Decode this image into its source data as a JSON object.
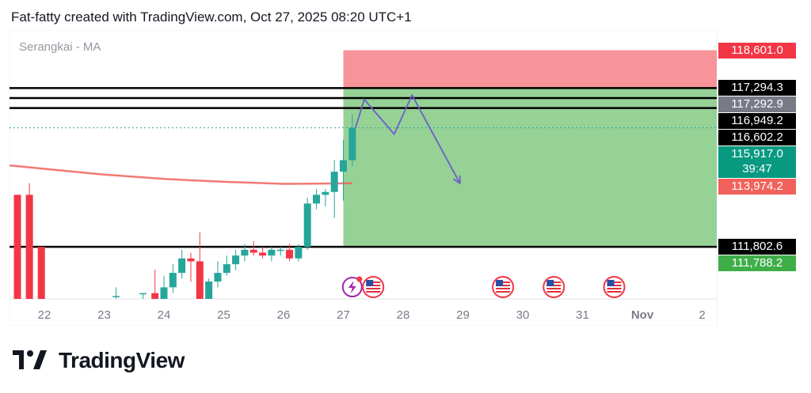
{
  "header": {
    "text": "Fat-fatty created with TradingView.com, Oct 27, 2025 08:20 UTC+1"
  },
  "indicator": {
    "label": "Serangkai - MA"
  },
  "brand": {
    "name": "TradingView"
  },
  "colors": {
    "up": "#26a69a",
    "down": "#f23645",
    "ma": "#f0625b",
    "stop_zone": "#f7949a",
    "target_zone": "#96d196",
    "projection": "#6c5fc7",
    "level_line": "#000000"
  },
  "chart_data": {
    "type": "candlestick",
    "title": "",
    "x_ticks": [
      "22",
      "23",
      "24",
      "25",
      "26",
      "27",
      "28",
      "29",
      "30",
      "31",
      "Nov",
      "2"
    ],
    "x_ticks_bold": [
      "Nov"
    ],
    "ylim": [
      110000,
      119300
    ],
    "price_labels": [
      {
        "value": "118,601.0",
        "price": 118601.0,
        "kind": "stop"
      },
      {
        "value": "117,294.3",
        "price": 117294.3,
        "kind": "level"
      },
      {
        "value": "117,292.9",
        "price": 117292.9,
        "kind": "gray"
      },
      {
        "value": "116,949.2",
        "price": 116949.2,
        "kind": "level"
      },
      {
        "value": "116,602.2",
        "price": 116602.2,
        "kind": "level"
      },
      {
        "value": "115,917.0",
        "price": 115917.0,
        "kind": "last",
        "countdown": "39:47"
      },
      {
        "value": "113,974.2",
        "price": 113974.2,
        "kind": "ma"
      },
      {
        "value": "111,802.6",
        "price": 111802.6,
        "kind": "level"
      },
      {
        "value": "111,788.2",
        "price": 111788.2,
        "kind": "target"
      }
    ],
    "horizontal_levels": [
      117294.3,
      116949.2,
      116602.2,
      111802.6
    ],
    "position": {
      "type": "short",
      "entry": 117292.9,
      "stop": 118601.0,
      "target": 111788.2,
      "start_day": 27.0,
      "end_day": 33.6
    },
    "candles": [
      {
        "day": 21.55,
        "open": 113600,
        "high": 113600,
        "low": 110000,
        "close": 110000
      },
      {
        "day": 21.75,
        "open": 113600,
        "high": 114000,
        "low": 110000,
        "close": 110000
      },
      {
        "day": 21.95,
        "open": 111800,
        "high": 111800,
        "low": 110000,
        "close": 110000
      },
      {
        "day": 23.2,
        "open": 110100,
        "high": 110400,
        "low": 110000,
        "close": 110100
      },
      {
        "day": 23.65,
        "open": 110200,
        "high": 110200,
        "low": 110000,
        "close": 110200
      },
      {
        "day": 23.85,
        "open": 110200,
        "high": 111000,
        "low": 110000,
        "close": 110000
      },
      {
        "day": 24.0,
        "open": 110000,
        "high": 110800,
        "low": 110000,
        "close": 110400
      },
      {
        "day": 24.15,
        "open": 110400,
        "high": 111200,
        "low": 110200,
        "close": 110900
      },
      {
        "day": 24.3,
        "open": 110900,
        "high": 111700,
        "low": 110700,
        "close": 111400
      },
      {
        "day": 24.45,
        "open": 111400,
        "high": 111600,
        "low": 110600,
        "close": 111300
      },
      {
        "day": 24.6,
        "open": 111300,
        "high": 112300,
        "low": 110000,
        "close": 110000
      },
      {
        "day": 24.75,
        "open": 110000,
        "high": 110700,
        "low": 110000,
        "close": 110600
      },
      {
        "day": 24.9,
        "open": 110600,
        "high": 111300,
        "low": 110400,
        "close": 110900
      },
      {
        "day": 25.05,
        "open": 110900,
        "high": 111500,
        "low": 110800,
        "close": 111200
      },
      {
        "day": 25.2,
        "open": 111200,
        "high": 111700,
        "low": 111000,
        "close": 111500
      },
      {
        "day": 25.35,
        "open": 111500,
        "high": 111900,
        "low": 111300,
        "close": 111700
      },
      {
        "day": 25.5,
        "open": 111700,
        "high": 112000,
        "low": 111500,
        "close": 111600
      },
      {
        "day": 25.65,
        "open": 111600,
        "high": 111800,
        "low": 111400,
        "close": 111500
      },
      {
        "day": 25.8,
        "open": 111500,
        "high": 111800,
        "low": 111300,
        "close": 111700
      },
      {
        "day": 25.95,
        "open": 111700,
        "high": 111800,
        "low": 111500,
        "close": 111700
      },
      {
        "day": 26.1,
        "open": 111700,
        "high": 111900,
        "low": 111300,
        "close": 111400
      },
      {
        "day": 26.25,
        "open": 111400,
        "high": 111900,
        "low": 111300,
        "close": 111800
      },
      {
        "day": 26.4,
        "open": 111800,
        "high": 113500,
        "low": 111700,
        "close": 113300
      },
      {
        "day": 26.55,
        "open": 113300,
        "high": 113800,
        "low": 113100,
        "close": 113600
      },
      {
        "day": 26.7,
        "open": 113600,
        "high": 113800,
        "low": 113200,
        "close": 113700
      },
      {
        "day": 26.85,
        "open": 113700,
        "high": 114800,
        "low": 112800,
        "close": 114400
      },
      {
        "day": 27.0,
        "open": 114400,
        "high": 115500,
        "low": 113400,
        "close": 114800
      },
      {
        "day": 27.15,
        "open": 114800,
        "high": 116400,
        "low": 114600,
        "close": 115917
      }
    ],
    "ma_series": [
      {
        "day": 21.0,
        "value": 114700
      },
      {
        "day": 21.5,
        "value": 114600
      },
      {
        "day": 22.0,
        "value": 114500
      },
      {
        "day": 23.0,
        "value": 114300
      },
      {
        "day": 24.0,
        "value": 114150
      },
      {
        "day": 25.0,
        "value": 114050
      },
      {
        "day": 26.0,
        "value": 113980
      },
      {
        "day": 26.5,
        "value": 113985
      },
      {
        "day": 27.15,
        "value": 114000
      }
    ],
    "projection_path": [
      {
        "day": 27.2,
        "value": 115900
      },
      {
        "day": 27.35,
        "value": 116900
      },
      {
        "day": 27.85,
        "value": 115700
      },
      {
        "day": 28.15,
        "value": 117050
      },
      {
        "day": 28.95,
        "value": 114000
      }
    ],
    "event_icons": [
      {
        "day": 27.15,
        "type": "lightning-icon"
      },
      {
        "day": 27.5,
        "type": "us-flag-icon"
      },
      {
        "day": 29.67,
        "type": "us-flag-icon"
      },
      {
        "day": 30.52,
        "type": "us-flag-icon"
      },
      {
        "day": 31.53,
        "type": "us-flag-icon"
      }
    ]
  }
}
